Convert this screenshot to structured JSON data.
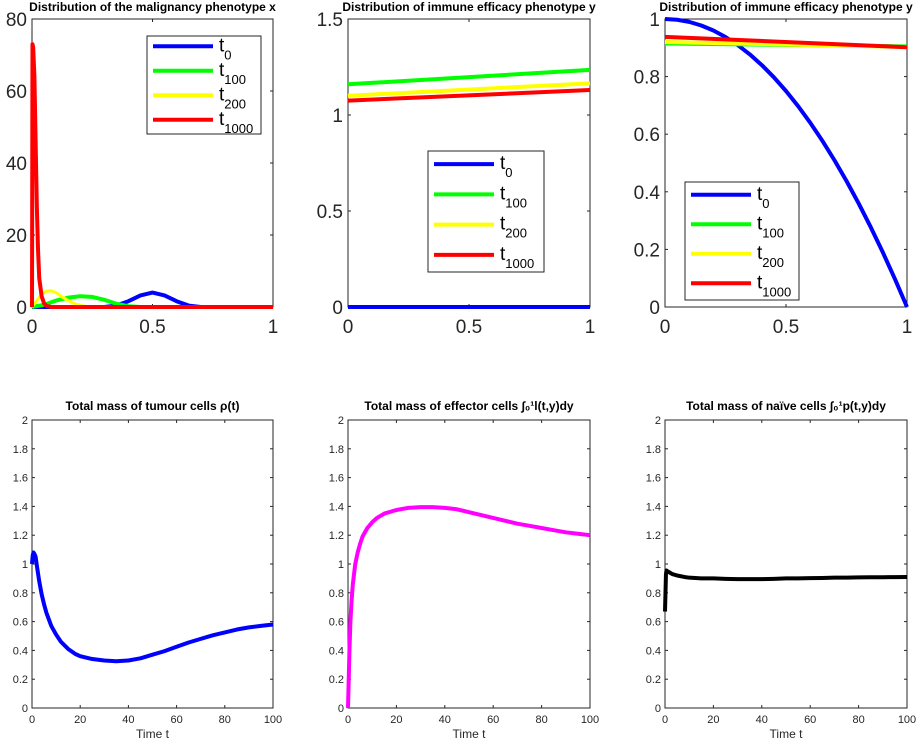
{
  "chart_data": [
    {
      "type": "line",
      "title": "Distribution of the malignancy phenotype x",
      "xlim": [
        0,
        1
      ],
      "ylim": [
        0,
        80
      ],
      "xticks": [
        "0",
        "0.5",
        "1"
      ],
      "yticks": [
        "0",
        "20",
        "40",
        "60",
        "80"
      ],
      "legend": "top-right",
      "series": [
        {
          "name": "t",
          "sub": "0",
          "color": "#0000ff",
          "x": [
            0,
            0.05,
            0.1,
            0.15,
            0.2,
            0.25,
            0.3,
            0.35,
            0.4,
            0.45,
            0.5,
            0.55,
            0.6,
            0.65,
            0.7,
            0.75,
            0.8,
            0.85,
            0.9,
            0.95,
            1
          ],
          "y": [
            0,
            0,
            0,
            0,
            0,
            0,
            0,
            0.4,
            1.6,
            3.2,
            4.0,
            3.2,
            1.6,
            0.4,
            0,
            0,
            0,
            0,
            0,
            0,
            0
          ]
        },
        {
          "name": "t",
          "sub": "100",
          "color": "#00ff00",
          "x": [
            0,
            0.05,
            0.1,
            0.15,
            0.2,
            0.25,
            0.3,
            0.35,
            0.4,
            0.45,
            0.5,
            0.6,
            0.7,
            0.8,
            0.9,
            1
          ],
          "y": [
            0,
            0.6,
            1.8,
            2.6,
            3.0,
            2.8,
            2.0,
            0.9,
            0.2,
            0,
            0,
            0,
            0,
            0,
            0,
            0
          ]
        },
        {
          "name": "t",
          "sub": "200",
          "color": "#ffff00",
          "x": [
            0,
            0.02,
            0.04,
            0.06,
            0.08,
            0.1,
            0.12,
            0.15,
            0.18,
            0.22,
            0.26,
            0.3,
            0.4,
            0.5,
            0.7,
            1
          ],
          "y": [
            0,
            1.8,
            3.6,
            4.4,
            4.5,
            4.0,
            3.0,
            1.8,
            0.8,
            0.2,
            0,
            0,
            0,
            0,
            0,
            0
          ],
          "drawn_width": 3
        },
        {
          "name": "t",
          "sub": "1000",
          "color": "#ff0000",
          "x": [
            0,
            0.002,
            0.005,
            0.01,
            0.015,
            0.02,
            0.025,
            0.03,
            0.04,
            0.05,
            0.06,
            0.08,
            0.1,
            0.2,
            0.5,
            1
          ],
          "y": [
            0,
            73,
            72,
            64,
            46,
            28,
            16,
            8,
            3,
            1,
            0.3,
            0,
            0,
            0,
            0,
            0
          ]
        }
      ]
    },
    {
      "type": "line",
      "title": "Distribution of immune efficacy phenotype y",
      "xlim": [
        0,
        1
      ],
      "ylim": [
        0,
        1.5
      ],
      "xticks": [
        "0",
        "0.5",
        "1"
      ],
      "yticks": [
        "0",
        "0.5",
        "1",
        "1.5"
      ],
      "legend": "center",
      "series": [
        {
          "name": "t",
          "sub": "0",
          "color": "#0000ff",
          "x": [
            0,
            1
          ],
          "y": [
            0,
            0
          ]
        },
        {
          "name": "t",
          "sub": "100",
          "color": "#00ff00",
          "x": [
            0,
            1
          ],
          "y": [
            1.16,
            1.235
          ]
        },
        {
          "name": "t",
          "sub": "200",
          "color": "#ffff00",
          "x": [
            0,
            1
          ],
          "y": [
            1.1,
            1.165
          ]
        },
        {
          "name": "t",
          "sub": "1000",
          "color": "#ff0000",
          "x": [
            0,
            1
          ],
          "y": [
            1.075,
            1.13
          ]
        }
      ]
    },
    {
      "type": "line",
      "title": "Distribution of immune efficacy phenotype y",
      "xlim": [
        0,
        1
      ],
      "ylim": [
        0,
        1
      ],
      "xticks": [
        "0",
        "0.5",
        "1"
      ],
      "yticks": [
        "0",
        "0.2",
        "0.4",
        "0.6",
        "0.8",
        "1"
      ],
      "legend": "bottom-left",
      "series": [
        {
          "name": "t",
          "sub": "0",
          "color": "#0000ff",
          "x": [
            0,
            0.05,
            0.1,
            0.15,
            0.2,
            0.25,
            0.3,
            0.35,
            0.4,
            0.45,
            0.5,
            0.55,
            0.6,
            0.65,
            0.7,
            0.75,
            0.8,
            0.85,
            0.9,
            0.95,
            1
          ],
          "y": [
            1,
            0.9975,
            0.99,
            0.9775,
            0.96,
            0.9375,
            0.91,
            0.8775,
            0.84,
            0.7975,
            0.75,
            0.6975,
            0.64,
            0.5775,
            0.51,
            0.4375,
            0.36,
            0.2775,
            0.19,
            0.0975,
            0
          ]
        },
        {
          "name": "t",
          "sub": "100",
          "color": "#00ff00",
          "x": [
            0,
            1
          ],
          "y": [
            0.915,
            0.905
          ]
        },
        {
          "name": "t",
          "sub": "200",
          "color": "#ffff00",
          "x": [
            0,
            1
          ],
          "y": [
            0.92,
            0.903
          ]
        },
        {
          "name": "t",
          "sub": "1000",
          "color": "#ff0000",
          "x": [
            0,
            1
          ],
          "y": [
            0.938,
            0.902
          ]
        }
      ]
    },
    {
      "type": "line",
      "title": "Total mass of tumour cells ρ(t)",
      "xlabel": "Time t",
      "xlim": [
        0,
        100
      ],
      "ylim": [
        0,
        2
      ],
      "xticks": [
        "0",
        "20",
        "40",
        "60",
        "80",
        "100"
      ],
      "yticks": [
        "0",
        "0.2",
        "0.4",
        "0.6",
        "0.8",
        "1",
        "1.2",
        "1.4",
        "1.6",
        "1.8",
        "2"
      ],
      "series": [
        {
          "color": "#0000ff",
          "x": [
            0,
            0.3,
            0.6,
            1,
            1.5,
            2,
            3,
            4,
            5,
            6,
            8,
            10,
            12,
            15,
            18,
            20,
            25,
            30,
            35,
            40,
            45,
            50,
            55,
            60,
            65,
            70,
            75,
            80,
            85,
            90,
            95,
            100
          ],
          "y": [
            1.0,
            1.06,
            1.08,
            1.07,
            1.05,
            0.99,
            0.88,
            0.79,
            0.72,
            0.66,
            0.57,
            0.51,
            0.46,
            0.41,
            0.375,
            0.36,
            0.34,
            0.33,
            0.325,
            0.33,
            0.345,
            0.37,
            0.395,
            0.425,
            0.455,
            0.48,
            0.505,
            0.525,
            0.545,
            0.56,
            0.57,
            0.58
          ]
        }
      ]
    },
    {
      "type": "line",
      "title": "Total mass of effector cells ∫₀¹l(t,y)dy",
      "xlabel": "Time t",
      "xlim": [
        0,
        100
      ],
      "ylim": [
        0,
        2
      ],
      "xticks": [
        "0",
        "20",
        "40",
        "60",
        "80",
        "100"
      ],
      "yticks": [
        "0",
        "0.2",
        "0.4",
        "0.6",
        "0.8",
        "1",
        "1.2",
        "1.4",
        "1.6",
        "1.8",
        "2"
      ],
      "series": [
        {
          "color": "#ff00ff",
          "x": [
            0,
            0.3,
            0.6,
            1,
            1.5,
            2,
            3,
            4,
            5,
            6,
            8,
            10,
            12,
            15,
            20,
            25,
            30,
            35,
            40,
            45,
            50,
            55,
            60,
            65,
            70,
            75,
            80,
            85,
            90,
            95,
            100
          ],
          "y": [
            0,
            0.2,
            0.4,
            0.6,
            0.75,
            0.86,
            1.0,
            1.08,
            1.14,
            1.19,
            1.25,
            1.29,
            1.32,
            1.35,
            1.375,
            1.39,
            1.395,
            1.395,
            1.39,
            1.38,
            1.36,
            1.34,
            1.32,
            1.3,
            1.28,
            1.265,
            1.25,
            1.235,
            1.22,
            1.21,
            1.2
          ]
        }
      ]
    },
    {
      "type": "line",
      "title": "Total mass of naïve cells ∫₀¹p(t,y)dy",
      "xlabel": "Time t",
      "xlim": [
        0,
        100
      ],
      "ylim": [
        0,
        2
      ],
      "xticks": [
        "0",
        "20",
        "40",
        "60",
        "80",
        "100"
      ],
      "yticks": [
        "0",
        "0.2",
        "0.4",
        "0.6",
        "0.8",
        "1",
        "1.2",
        "1.4",
        "1.6",
        "1.8",
        "2"
      ],
      "series": [
        {
          "color": "#000000",
          "x": [
            0,
            0.2,
            0.4,
            0.6,
            1,
            2,
            3,
            5,
            8,
            10,
            15,
            20,
            25,
            30,
            35,
            40,
            45,
            50,
            55,
            60,
            65,
            70,
            75,
            80,
            85,
            90,
            95,
            100
          ],
          "y": [
            0.67,
            0.8,
            0.93,
            0.955,
            0.95,
            0.94,
            0.93,
            0.92,
            0.91,
            0.905,
            0.9,
            0.9,
            0.897,
            0.895,
            0.895,
            0.895,
            0.897,
            0.9,
            0.9,
            0.902,
            0.903,
            0.905,
            0.905,
            0.907,
            0.908,
            0.908,
            0.909,
            0.91
          ]
        }
      ]
    }
  ]
}
